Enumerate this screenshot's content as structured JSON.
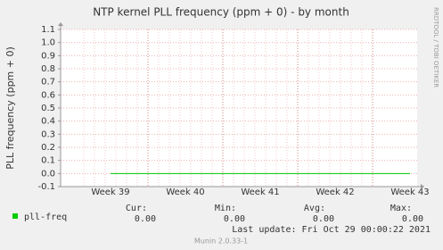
{
  "chart_data": {
    "type": "line",
    "title": "NTP kernel PLL frequency (ppm + 0) - by month",
    "y_label": "PLL frequency (ppm + 0)",
    "side_text": "RRDTOOL / TOBI OETIKER",
    "categories": [
      "Week 39",
      "Week 40",
      "Week 41",
      "Week 42",
      "Week 43"
    ],
    "series": [
      {
        "name": "pll-freq",
        "color": "#00cc00",
        "values": [
          0,
          0,
          0,
          0,
          0
        ]
      }
    ],
    "ylim": [
      -0.1,
      1.1
    ],
    "yticks": [
      1.1,
      {
        "value": 1,
        "label": "1.0"
      },
      0.9,
      0.8,
      0.7,
      0.6,
      0.5,
      0.4,
      0.3,
      0.2,
      0.1,
      {
        "value": 0,
        "label": "0.0"
      },
      -0.1
    ],
    "grid": true,
    "legend_stats": {
      "headers": [
        "Cur:",
        "Min:",
        "Avg:",
        "Max:"
      ],
      "values": [
        0,
        0,
        0,
        0
      ],
      "value_labels": [
        "0.00",
        "0.00",
        "0.00",
        "0.00"
      ]
    },
    "last_update": "Last update: Fri Oct 29 00:00:22 2021",
    "footer": "Munin 2.0.33-1"
  }
}
